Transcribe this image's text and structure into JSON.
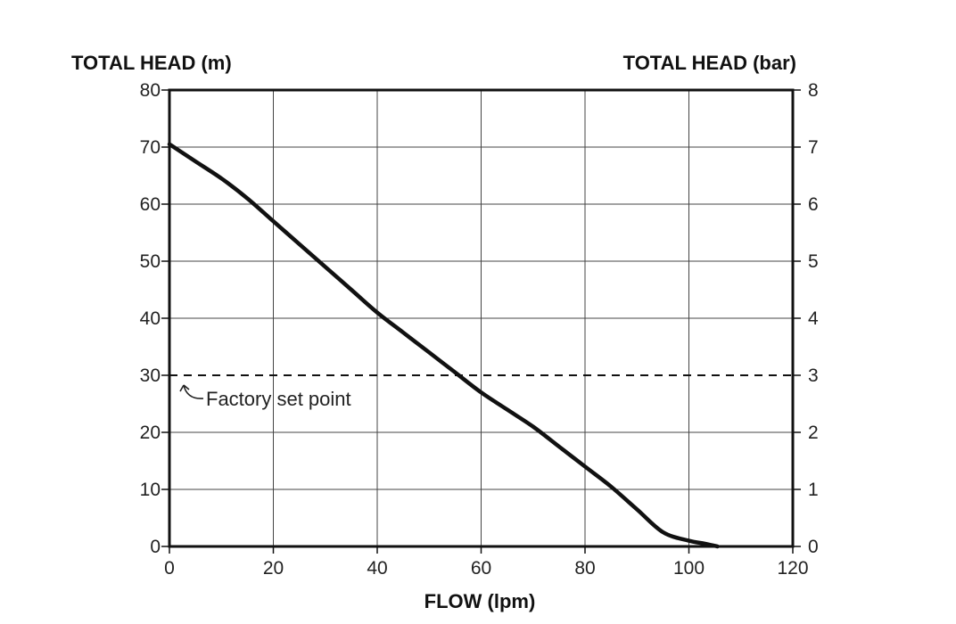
{
  "chart_data": {
    "type": "line",
    "left_axis_title": "TOTAL HEAD (m)",
    "right_axis_title": "TOTAL HEAD (bar)",
    "xlabel": "FLOW (lpm)",
    "xlim": [
      0,
      120
    ],
    "ylim": [
      0,
      80
    ],
    "y2lim": [
      0,
      8
    ],
    "x_ticks": [
      0,
      20,
      40,
      60,
      80,
      100,
      120
    ],
    "y_ticks": [
      0,
      10,
      20,
      30,
      40,
      50,
      60,
      70,
      80
    ],
    "y2_ticks": [
      0,
      1,
      2,
      3,
      4,
      5,
      6,
      7,
      8
    ],
    "grid": true,
    "series": [
      {
        "x": [
          0,
          5,
          10,
          15,
          20,
          25,
          30,
          35,
          40,
          45,
          50,
          55,
          60,
          65,
          70,
          75,
          80,
          85,
          90,
          95,
          100,
          103,
          105.5
        ],
        "y": [
          70.5,
          67.5,
          64.5,
          61,
          57,
          53,
          49,
          45,
          41,
          37.5,
          34,
          30.5,
          27,
          24,
          21,
          17.5,
          14,
          10.5,
          6.5,
          2.5,
          1,
          0.5,
          0
        ]
      }
    ],
    "reference_line": {
      "y": 30,
      "style": "dashed",
      "label": "Factory set point"
    }
  }
}
